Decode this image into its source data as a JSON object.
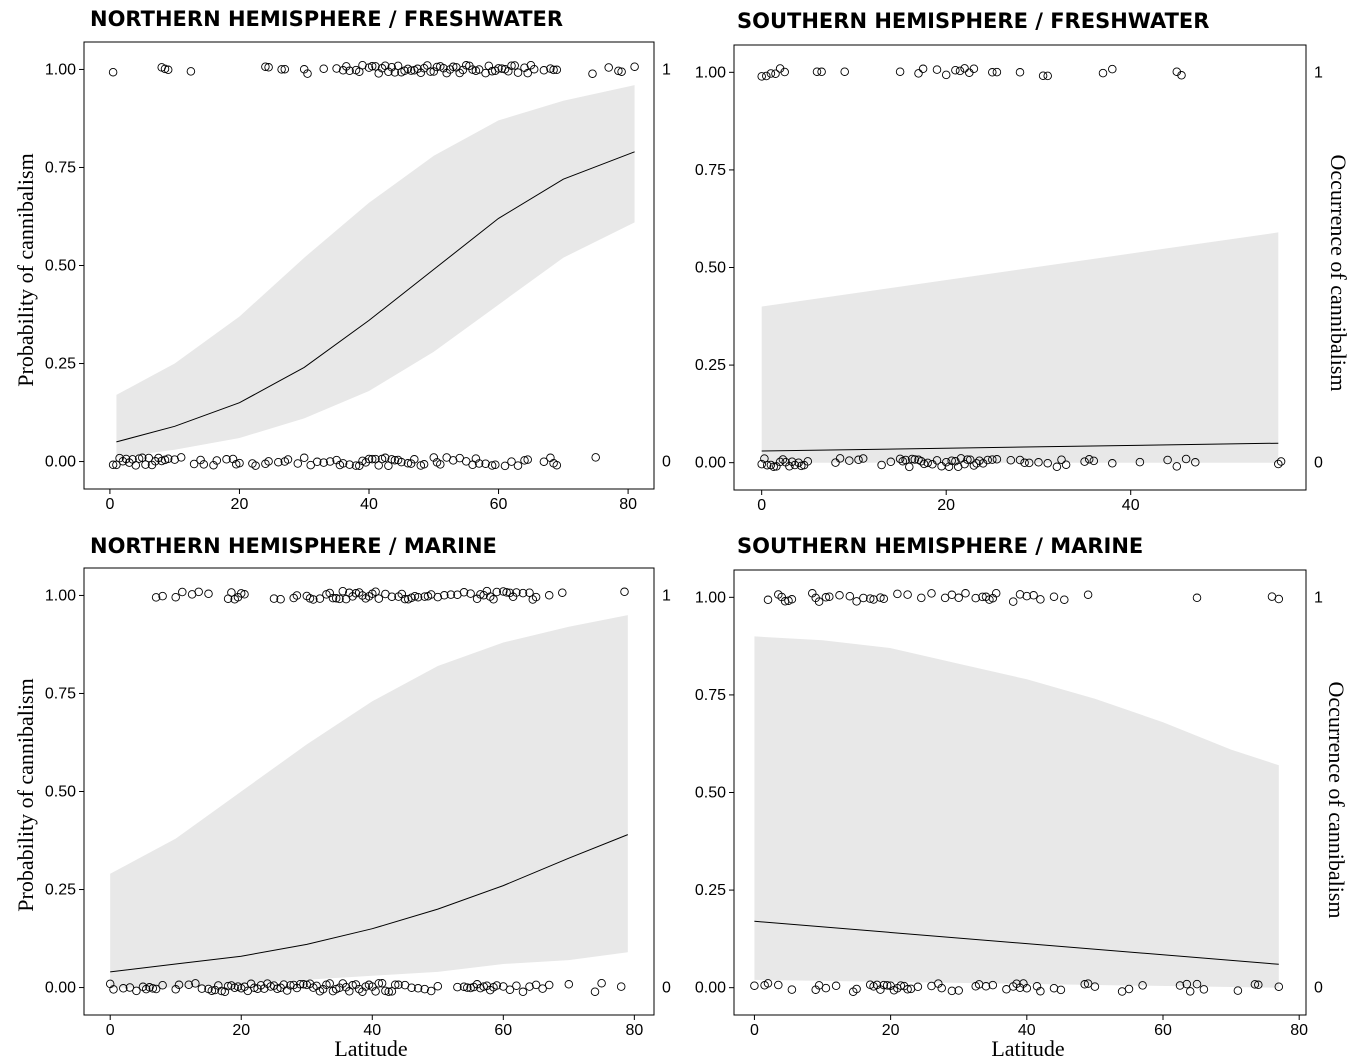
{
  "chart_data": [
    {
      "type": "scatter",
      "title": "NORTHERN HEMISPHERE / FRESHWATER",
      "xlabel": "",
      "ylabel": "Probability of cannibalism",
      "y2label": "",
      "xlim": [
        -4,
        84
      ],
      "ylim": [
        -0.07,
        1.07
      ],
      "xticks": [
        0,
        20,
        40,
        60,
        80
      ],
      "yticks": [
        "0.00",
        "0.25",
        "0.50",
        "0.75",
        "1.00"
      ],
      "y2ticks": [
        "0",
        "1"
      ],
      "fit": {
        "x": [
          1,
          10,
          20,
          30,
          40,
          50,
          60,
          70,
          81
        ],
        "y": [
          0.05,
          0.09,
          0.15,
          0.24,
          0.36,
          0.49,
          0.62,
          0.72,
          0.79
        ]
      },
      "ci_upper": {
        "x": [
          1,
          10,
          20,
          30,
          40,
          50,
          60,
          70,
          81
        ],
        "y": [
          0.17,
          0.25,
          0.37,
          0.52,
          0.66,
          0.78,
          0.87,
          0.92,
          0.96
        ]
      },
      "ci_lower": {
        "x": [
          1,
          10,
          20,
          30,
          40,
          50,
          60,
          70,
          81
        ],
        "y": [
          0.01,
          0.03,
          0.06,
          0.11,
          0.18,
          0.28,
          0.4,
          0.52,
          0.61
        ]
      },
      "points_present": [
        0.5,
        8,
        8.5,
        9,
        12.5,
        24,
        24.5,
        26.5,
        27,
        30,
        30.5,
        33,
        35,
        36,
        36.5,
        37,
        38,
        38.5,
        39,
        40,
        40.5,
        41,
        41.5,
        42,
        42.5,
        43,
        43.5,
        44,
        44.5,
        45,
        45.5,
        46,
        46.5,
        47,
        47.5,
        48,
        48.5,
        49,
        49.5,
        50,
        50.5,
        51,
        51.5,
        52,
        52.5,
        53,
        53.5,
        54,
        54.5,
        55,
        55.5,
        56,
        56.5,
        57,
        58,
        58.5,
        59,
        59.5,
        60,
        60.5,
        61,
        61.5,
        62,
        62.5,
        63,
        64,
        64.5,
        65,
        65.5,
        67,
        68,
        68.5,
        69,
        74.5,
        77,
        78.5,
        79,
        81
      ],
      "points_absent": [
        0.5,
        1,
        1.5,
        2,
        2.5,
        3,
        3.5,
        4,
        4.5,
        5,
        5.5,
        6,
        6.5,
        7,
        7.5,
        8,
        8.5,
        9,
        10,
        11,
        13,
        14,
        14.5,
        16,
        16.5,
        18,
        19,
        19.5,
        20,
        22,
        22.5,
        24,
        24.5,
        26,
        27,
        27.5,
        29,
        30,
        31,
        32,
        33,
        34,
        35,
        35.5,
        36,
        37,
        38,
        38.5,
        39,
        39.5,
        40,
        40.5,
        41,
        41.5,
        42,
        42.5,
        43,
        43.5,
        44,
        44.5,
        45,
        46,
        46.5,
        47,
        48,
        48.5,
        50,
        50.5,
        51,
        52,
        53,
        54,
        55,
        56,
        56.5,
        57,
        58,
        59,
        59.5,
        61,
        62,
        63,
        64,
        64.5,
        67,
        68,
        68.5,
        69,
        75
      ]
    },
    {
      "type": "scatter",
      "title": "SOUTHERN HEMISPHERE / FRESHWATER",
      "xlabel": "",
      "ylabel": "",
      "y2label": "Occurrence of cannibalism",
      "xlim": [
        -3,
        59
      ],
      "ylim": [
        -0.07,
        1.07
      ],
      "xticks": [
        0,
        20,
        40
      ],
      "yticks": [
        "0.00",
        "0.25",
        "0.50",
        "0.75",
        "1.00"
      ],
      "y2ticks": [
        "0",
        "1"
      ],
      "fit": {
        "x": [
          0,
          56
        ],
        "y": [
          0.03,
          0.05
        ]
      },
      "ci_upper": {
        "x": [
          0,
          56
        ],
        "y": [
          0.4,
          0.59
        ]
      },
      "ci_lower": {
        "x": [
          0,
          56
        ],
        "y": [
          0.0,
          0.0
        ]
      },
      "points_present": [
        0,
        0.5,
        1,
        1.5,
        2,
        2.5,
        6,
        6.5,
        9,
        15,
        17,
        17.5,
        19,
        20,
        21,
        21.5,
        22,
        22.5,
        23,
        25,
        25.5,
        28,
        30.5,
        31,
        37,
        38,
        45,
        45.5
      ],
      "points_absent": [
        0,
        0.3,
        0.6,
        1,
        1.3,
        1.6,
        2,
        2.3,
        2.6,
        3,
        3.3,
        3.6,
        4,
        4.3,
        4.6,
        5,
        8,
        8.5,
        9.5,
        10.5,
        11,
        13,
        14,
        15,
        15.3,
        15.6,
        16,
        16.3,
        16.6,
        17,
        17.3,
        17.6,
        18,
        18.5,
        19,
        19.5,
        20,
        20.3,
        20.6,
        21,
        21.3,
        21.6,
        22,
        22.3,
        22.6,
        23,
        23.3,
        23.6,
        24,
        24.5,
        25,
        25.5,
        27,
        28,
        28.5,
        29,
        30,
        31,
        32,
        32.5,
        33,
        35,
        35.5,
        36,
        38,
        41,
        44,
        45,
        46,
        47,
        56,
        56.3
      ]
    },
    {
      "type": "scatter",
      "title": "NORTHERN HEMISPHERE / MARINE",
      "xlabel": "Latitude",
      "ylabel": "Probability of cannibalism",
      "y2label": "",
      "xlim": [
        -4,
        83
      ],
      "ylim": [
        -0.07,
        1.07
      ],
      "xticks": [
        0,
        20,
        40,
        60,
        80
      ],
      "yticks": [
        "0.00",
        "0.25",
        "0.50",
        "0.75",
        "1.00"
      ],
      "y2ticks": [
        "0",
        "1"
      ],
      "fit": {
        "x": [
          0,
          10,
          20,
          30,
          40,
          50,
          60,
          70,
          79
        ],
        "y": [
          0.04,
          0.06,
          0.08,
          0.11,
          0.15,
          0.2,
          0.26,
          0.33,
          0.39
        ]
      },
      "ci_upper": {
        "x": [
          0,
          10,
          20,
          30,
          40,
          50,
          60,
          70,
          79
        ],
        "y": [
          0.29,
          0.38,
          0.5,
          0.62,
          0.73,
          0.82,
          0.88,
          0.92,
          0.95
        ]
      },
      "ci_lower": {
        "x": [
          0,
          10,
          20,
          30,
          40,
          50,
          60,
          70,
          79
        ],
        "y": [
          0.0,
          0.0,
          0.01,
          0.02,
          0.03,
          0.04,
          0.06,
          0.07,
          0.09
        ]
      },
      "points_present": [
        7,
        8,
        10,
        11,
        12.5,
        13.5,
        15,
        18,
        18.5,
        19,
        19.5,
        20,
        20.5,
        25,
        26,
        28,
        28.5,
        30,
        30.5,
        31,
        32,
        33,
        33.5,
        34,
        34.5,
        35,
        35.5,
        36,
        36.5,
        37,
        37.5,
        38,
        38.5,
        39,
        39.5,
        40,
        40.5,
        41,
        42,
        43,
        44,
        44.5,
        45,
        45.5,
        46,
        46.5,
        47,
        48,
        48.5,
        49,
        50,
        51,
        52,
        53,
        54,
        55,
        56,
        56.5,
        57,
        57.5,
        58,
        58.5,
        59,
        60,
        60.5,
        61,
        61.5,
        62,
        63,
        64,
        64.5,
        65,
        67,
        69,
        78.5
      ],
      "points_absent": [
        0,
        0.5,
        2,
        3,
        4,
        5,
        5.5,
        6,
        6.5,
        7,
        8,
        10,
        10.5,
        12,
        13,
        14,
        15,
        15.5,
        16,
        16.5,
        17,
        17.5,
        18,
        18.5,
        19,
        19.5,
        20,
        20.5,
        21,
        21.5,
        22,
        22.5,
        23,
        23.5,
        24,
        24.5,
        25,
        25.5,
        26,
        26.5,
        27,
        27.5,
        28,
        28.5,
        29,
        29.5,
        30,
        30.5,
        31,
        31.5,
        32,
        32.5,
        33,
        33.5,
        34,
        34.5,
        35,
        35.5,
        36,
        36.5,
        37,
        37.5,
        38,
        38.5,
        39,
        39.5,
        40,
        40.5,
        41,
        41.5,
        42,
        42.5,
        43,
        43.5,
        44,
        45,
        46,
        47,
        48,
        49,
        50,
        53,
        54,
        54.5,
        55,
        55.5,
        56,
        56.5,
        57,
        57.5,
        58,
        58.5,
        59,
        60,
        61,
        62,
        63,
        64,
        65,
        66,
        67,
        70,
        74,
        75,
        78
      ]
    },
    {
      "type": "scatter",
      "title": "SOUTHERN HEMISPHERE / MARINE",
      "xlabel": "Latitude",
      "ylabel": "",
      "y2label": "Occurrence of cannibalism",
      "xlim": [
        -3,
        81
      ],
      "ylim": [
        -0.07,
        1.07
      ],
      "xticks": [
        0,
        20,
        40,
        60,
        80
      ],
      "yticks": [
        "0.00",
        "0.25",
        "0.50",
        "0.75",
        "1.00"
      ],
      "y2ticks": [
        "0",
        "1"
      ],
      "fit": {
        "x": [
          0,
          77
        ],
        "y": [
          0.17,
          0.06
        ]
      },
      "ci_upper": {
        "x": [
          0,
          10,
          20,
          30,
          40,
          50,
          60,
          70,
          77
        ],
        "y": [
          0.9,
          0.89,
          0.87,
          0.83,
          0.79,
          0.74,
          0.68,
          0.61,
          0.57
        ]
      },
      "ci_lower": {
        "x": [
          0,
          77
        ],
        "y": [
          0.02,
          0.0
        ]
      },
      "points_present": [
        2,
        3.5,
        4,
        4.5,
        5,
        5.5,
        8.5,
        9,
        9.5,
        10.5,
        11,
        12.5,
        14,
        15,
        16,
        17,
        17.5,
        18.5,
        19,
        21,
        22.5,
        24.5,
        26,
        28,
        29,
        30,
        31,
        32.5,
        33.5,
        34,
        34.5,
        35,
        35.5,
        38,
        39,
        40,
        41,
        42,
        44,
        45.5,
        49,
        65,
        76,
        77
      ],
      "points_absent": [
        0,
        1.5,
        2,
        3.5,
        5.5,
        9,
        9.5,
        10.5,
        12,
        14.5,
        15,
        17,
        17.5,
        18,
        18.5,
        19,
        19.5,
        20,
        20.5,
        21,
        21.5,
        22,
        22.5,
        23,
        24,
        26,
        27,
        27.5,
        29,
        30,
        32.5,
        33,
        34,
        35,
        37,
        38,
        38.5,
        39,
        39.5,
        40,
        41.5,
        42,
        44,
        45,
        48.5,
        49,
        50,
        54,
        55,
        57,
        62.5,
        63.5,
        64,
        65,
        66,
        71,
        73.5,
        74,
        77
      ]
    }
  ]
}
